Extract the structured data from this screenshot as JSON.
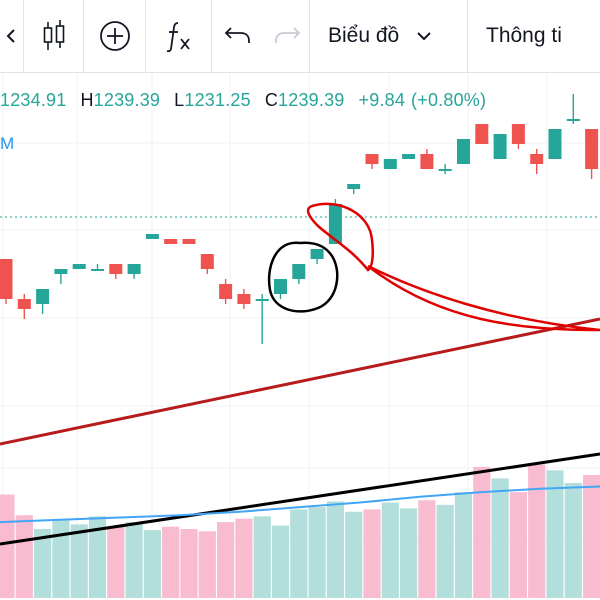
{
  "toolbar": {
    "chart_menu_label": "Biểu đồ",
    "info_label": "Thông ti"
  },
  "ohlc": {
    "open": "1234.91",
    "high_key": "H",
    "high": "1239.39",
    "low_key": "L",
    "low": "1231.25",
    "close_key": "C",
    "close": "1239.39",
    "change": "+9.84",
    "change_pct": "(+0.80%)"
  },
  "series_label": "M",
  "colors": {
    "up": "#26a69a",
    "down": "#ef5350",
    "volume_up": "#b2dfdb",
    "volume_down": "#f8bbd0",
    "ma_long": "#b71c1c",
    "ma_black": "#000000",
    "volume_ma": "#42a5f5",
    "price_line": "#26a69a",
    "annotation_black": "#000000",
    "annotation_red": "#e00000"
  },
  "chart_data": {
    "type": "candlestick",
    "ohlc": [
      {
        "o": 1231,
        "h": 1231,
        "l": 1222,
        "c": 1223
      },
      {
        "o": 1223,
        "h": 1224,
        "l": 1219,
        "c": 1221
      },
      {
        "o": 1222,
        "h": 1225,
        "l": 1220,
        "c": 1225
      },
      {
        "o": 1228,
        "h": 1229,
        "l": 1226,
        "c": 1229
      },
      {
        "o": 1229,
        "h": 1230,
        "l": 1229,
        "c": 1230
      },
      {
        "o": 1229,
        "h": 1230,
        "l": 1229,
        "c": 1229
      },
      {
        "o": 1230,
        "h": 1230,
        "l": 1227,
        "c": 1228
      },
      {
        "o": 1228,
        "h": 1230,
        "l": 1227,
        "c": 1230
      },
      {
        "o": 1235,
        "h": 1236,
        "l": 1235,
        "c": 1236
      },
      {
        "o": 1235,
        "h": 1235,
        "l": 1234,
        "c": 1234
      },
      {
        "o": 1235,
        "h": 1235,
        "l": 1234,
        "c": 1234
      },
      {
        "o": 1232,
        "h": 1232,
        "l": 1228,
        "c": 1229
      },
      {
        "o": 1226,
        "h": 1227,
        "l": 1222,
        "c": 1223
      },
      {
        "o": 1224,
        "h": 1225,
        "l": 1221,
        "c": 1222
      },
      {
        "o": 1223,
        "h": 1224,
        "l": 1214,
        "c": 1223
      },
      {
        "o": 1224,
        "h": 1227,
        "l": 1223,
        "c": 1227
      },
      {
        "o": 1227,
        "h": 1230,
        "l": 1226,
        "c": 1230
      },
      {
        "o": 1231,
        "h": 1233,
        "l": 1230,
        "c": 1233
      },
      {
        "o": 1234,
        "h": 1243,
        "l": 1234,
        "c": 1242
      },
      {
        "o": 1245,
        "h": 1246,
        "l": 1244,
        "c": 1246
      },
      {
        "o": 1252,
        "h": 1252,
        "l": 1249,
        "c": 1250
      },
      {
        "o": 1249,
        "h": 1251,
        "l": 1249,
        "c": 1251
      },
      {
        "o": 1251,
        "h": 1252,
        "l": 1251,
        "c": 1252
      },
      {
        "o": 1252,
        "h": 1253,
        "l": 1249,
        "c": 1249
      },
      {
        "o": 1249,
        "h": 1250,
        "l": 1248,
        "c": 1249
      },
      {
        "o": 1250,
        "h": 1255,
        "l": 1250,
        "c": 1255
      },
      {
        "o": 1258,
        "h": 1258,
        "l": 1254,
        "c": 1254
      },
      {
        "o": 1251,
        "h": 1256,
        "l": 1251,
        "c": 1256
      },
      {
        "o": 1258,
        "h": 1258,
        "l": 1253,
        "c": 1254
      },
      {
        "o": 1252,
        "h": 1253,
        "l": 1248,
        "c": 1250
      },
      {
        "o": 1251,
        "h": 1257,
        "l": 1251,
        "c": 1257
      },
      {
        "o": 1259,
        "h": 1264,
        "l": 1258,
        "c": 1259
      },
      {
        "o": 1257,
        "h": 1257,
        "l": 1247,
        "c": 1249
      }
    ],
    "volume": [
      90,
      72,
      60,
      68,
      64,
      71,
      62,
      66,
      59,
      62,
      60,
      58,
      66,
      69,
      71,
      63,
      77,
      79,
      84,
      75,
      77,
      83,
      78,
      85,
      81,
      92,
      114,
      104,
      92,
      116,
      111,
      100,
      107
    ],
    "ma_long": {
      "from": 1194,
      "to": 1219
    },
    "ma_black": {
      "from": 1174,
      "to": 1192
    },
    "volume_ma": [
      66,
      68,
      70,
      72,
      75,
      79,
      83,
      88,
      92,
      95,
      97
    ],
    "price_line": 1239.39
  }
}
